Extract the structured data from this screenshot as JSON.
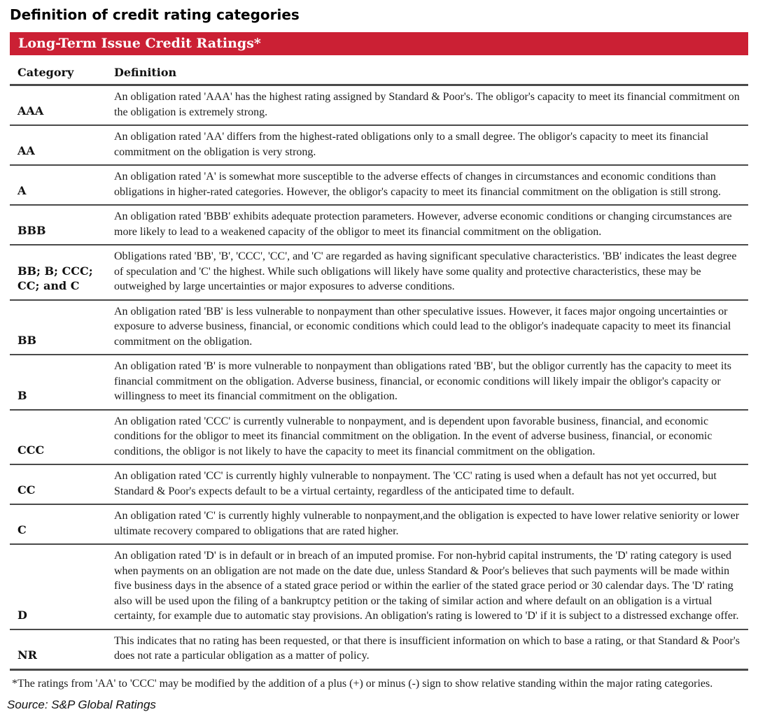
{
  "page_title": "Definition of credit rating categories",
  "colors": {
    "header_bar": "#CB2034",
    "rule": "#4a4a4a",
    "text": "#1c1c1c"
  },
  "table": {
    "header": "Long-Term Issue Credit Ratings*",
    "columns": [
      "Category",
      "Definition"
    ],
    "rows": [
      {
        "category": "AAA",
        "definition": "An obligation rated 'AAA' has the highest rating assigned by Standard & Poor's. The obligor's capacity to meet its financial commitment on the obligation is extremely strong."
      },
      {
        "category": "AA",
        "definition": "An obligation rated 'AA' differs from the highest-rated obligations only to a small degree. The obligor's capacity to meet its financial commitment on the obligation is very strong."
      },
      {
        "category": "A",
        "definition": "An obligation rated 'A' is somewhat more susceptible to the adverse effects of changes in circumstances and economic conditions than obligations in higher-rated categories. However, the obligor's capacity to meet its financial commitment on the obligation is still strong."
      },
      {
        "category": "BBB",
        "definition": "An obligation rated 'BBB' exhibits adequate protection parameters. However, adverse economic conditions or changing circumstances are more likely to lead to a weakened capacity of the obligor to meet its financial commitment on the obligation."
      },
      {
        "category": "BB; B; CCC; CC; and C",
        "definition": "Obligations rated 'BB', 'B', 'CCC', 'CC', and 'C' are regarded as having significant speculative characteristics. 'BB' indicates the least degree of speculation and 'C' the highest. While such obligations will likely have some quality and protective characteristics, these may be outweighed by large uncertainties or major exposures to adverse conditions."
      },
      {
        "category": "BB",
        "definition": "An obligation rated 'BB' is less vulnerable to nonpayment than other speculative issues. However, it faces major ongoing uncertainties or exposure to adverse business, financial, or economic conditions which could lead to the obligor's inadequate capacity to meet its financial commitment on the obligation."
      },
      {
        "category": "B",
        "definition": "An obligation rated 'B' is more vulnerable to nonpayment than obligations rated 'BB', but the obligor currently has the capacity to meet its financial commitment on the obligation. Adverse business, financial, or economic conditions will likely impair the obligor's capacity or willingness to meet its financial commitment on the obligation."
      },
      {
        "category": "CCC",
        "definition": "An obligation rated 'CCC' is currently vulnerable to nonpayment, and is dependent upon favorable business, financial, and economic conditions for the obligor to meet its financial commitment on the obligation. In the event of adverse business, financial, or economic conditions, the obligor is not likely to have the capacity to meet its financial commitment on the obligation."
      },
      {
        "category": "CC",
        "definition": "An obligation rated 'CC' is currently highly vulnerable to nonpayment. The 'CC' rating is used when a default has not yet occurred, but Standard & Poor's expects default to be a virtual certainty, regardless of the anticipated time to default."
      },
      {
        "category": "C",
        "definition": "An obligation rated 'C' is currently highly vulnerable to nonpayment,and the obligation is expected to have lower relative seniority or lower ultimate recovery compared to obligations that are rated higher."
      },
      {
        "category": "D",
        "definition": "An obligation rated 'D' is in default or in breach of an imputed promise. For non-hybrid capital instruments, the 'D' rating category is used when payments on an obligation are not made on the date due, unless Standard & Poor's believes that such payments will be made within five business days in the absence of a stated grace period or within the earlier of the stated grace period or 30 calendar days. The 'D' rating also will be used upon the filing of a bankruptcy petition or the taking of similar action and where default on an obligation is a virtual certainty, for example due to automatic stay provisions. An obligation's rating is lowered to 'D' if it is subject to a distressed exchange offer."
      },
      {
        "category": "NR",
        "definition": "This indicates that no rating has been requested, or that there is insufficient information on which to base a rating, or that Standard & Poor's does not rate a particular obligation as a matter of policy."
      }
    ]
  },
  "footnote": "*The ratings from 'AA' to 'CCC' may be modified by the addition of a plus (+) or minus (-) sign to show relative standing within the major rating categories.",
  "source": "Source: S&P Global Ratings"
}
